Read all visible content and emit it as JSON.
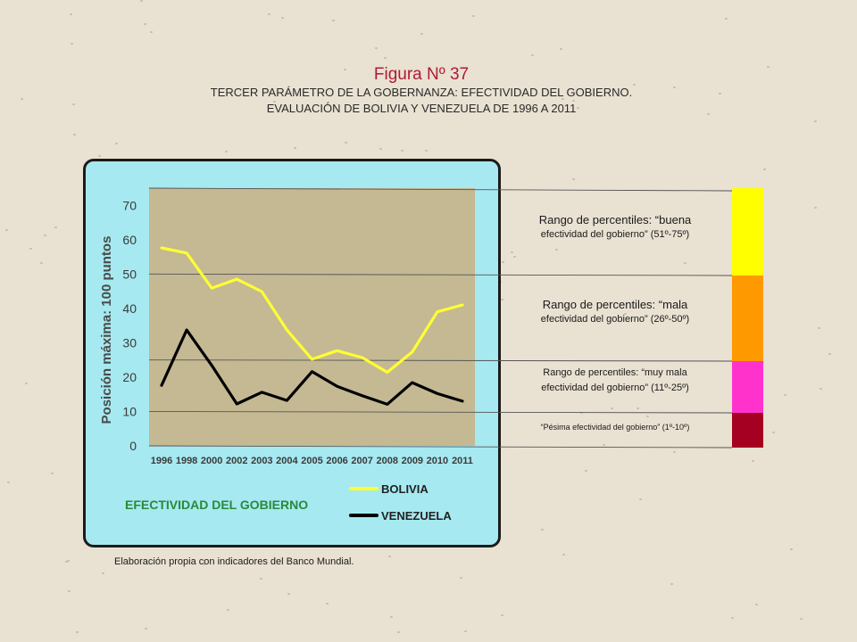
{
  "header": {
    "figure_title": "Figura Nº 37",
    "subtitle_line1": "TERCER PARÁMETRO DE LA GOBERNANZA: EFECTIVIDAD DEL GOBIERNO.",
    "subtitle_line2": "EVALUACIÓN DE BOLIVIA Y VENEZUELA DE 1996 A 2011"
  },
  "footer": {
    "caption": "Elaboración propia con indicadores del Banco Mundial."
  },
  "ranges": [
    {
      "line1": "Rango de percentiles: “buena",
      "line2": "efectividad del gobierno” (51º-75º)",
      "color": "#ffff00"
    },
    {
      "line1": "Rango de percentiles: “mala",
      "line2": "efectividad del gobierno” (26º-50º)",
      "color": "#ff9900"
    },
    {
      "line1": "Rango de percentiles: “muy mala",
      "line2": "efectividad del gobierno” (11º-25º)",
      "color": "#ff33cc"
    },
    {
      "line1": "“Pésima efectividad del gobierno” (1º-10º)",
      "line2": "",
      "color": "#a50021"
    }
  ],
  "chart_data": {
    "type": "line",
    "title": "EFECTIVIDAD DEL GOBIERNO",
    "ylabel": "Posición máxima: 100 puntos",
    "xlabel": "",
    "categories": [
      "1996",
      "1998",
      "2000",
      "2002",
      "2003",
      "2004",
      "2005",
      "2006",
      "2007",
      "2008",
      "2009",
      "2010",
      "2011"
    ],
    "ylim": [
      0,
      75
    ],
    "yticks": [
      0,
      10,
      20,
      30,
      40,
      50,
      60,
      70
    ],
    "grid": false,
    "legend_position": "bottom-right",
    "plot_background": "#c4b993",
    "series": [
      {
        "name": "BOLIVIA",
        "color": "#ffff33",
        "values": [
          57.6,
          56.1,
          45.9,
          48.5,
          44.9,
          33.7,
          25.2,
          27.7,
          25.7,
          21.4,
          27.3,
          39.0,
          41.0
        ]
      },
      {
        "name": "VENEZUELA",
        "color": "#000000",
        "values": [
          17.6,
          33.7,
          23.4,
          12.2,
          15.6,
          13.2,
          21.6,
          17.3,
          14.6,
          12.1,
          18.4,
          15.2,
          13.0
        ]
      }
    ]
  }
}
